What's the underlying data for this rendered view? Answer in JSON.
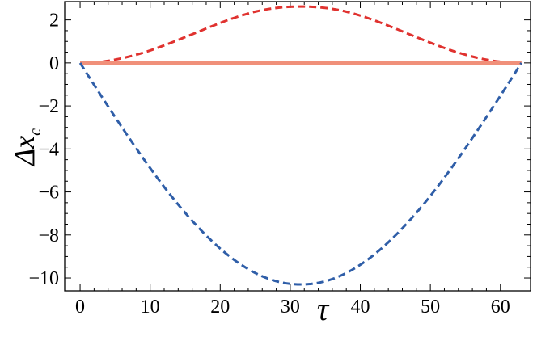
{
  "chart_data": {
    "type": "line",
    "title": "",
    "xlabel": "τ",
    "ylabel_main": "Δx",
    "ylabel_sub": "c",
    "xlim": [
      -2.2,
      64.3
    ],
    "ylim": [
      -10.6,
      2.85
    ],
    "xticks": [
      0,
      10,
      20,
      30,
      40,
      50,
      60
    ],
    "xtick_labels": [
      "0",
      "10",
      "20",
      "30",
      "40",
      "50",
      "60"
    ],
    "yticks": [
      2,
      0,
      -2,
      -4,
      -6,
      -8,
      -10
    ],
    "ytick_labels": [
      "2",
      "0",
      "−2",
      "−4",
      "−6",
      "−8",
      "−10"
    ],
    "grid": false,
    "legend": "none",
    "series": [
      {
        "color": "#e0322f",
        "style": "dashed",
        "x": [
          0,
          3.15,
          6.3,
          9.45,
          12.6,
          15.75,
          18.9,
          22.05,
          25.2,
          28.35,
          31.5,
          34.65,
          37.8,
          40.95,
          44.1,
          47.25,
          50.4,
          53.55,
          56.7,
          59.85,
          63
        ],
        "y": [
          0,
          0.06,
          0.24,
          0.52,
          0.89,
          1.3,
          1.72,
          2.1,
          2.4,
          2.57,
          2.62,
          2.57,
          2.4,
          2.1,
          1.72,
          1.3,
          0.89,
          0.52,
          0.24,
          0.06,
          0
        ]
      },
      {
        "color": "#f0907a",
        "style": "solid",
        "x": [
          0,
          63
        ],
        "y": [
          0,
          0
        ]
      },
      {
        "color": "#2f5ea8",
        "style": "dashed",
        "x": [
          0,
          3.15,
          6.3,
          9.45,
          12.6,
          15.75,
          18.9,
          22.05,
          25.2,
          28.35,
          31.5,
          34.65,
          37.8,
          40.95,
          44.1,
          47.25,
          50.4,
          53.55,
          56.7,
          59.85,
          63
        ],
        "y": [
          0,
          -1.6,
          -3.15,
          -4.64,
          -6.02,
          -7.25,
          -8.31,
          -9.17,
          -9.8,
          -10.18,
          -10.3,
          -10.18,
          -9.8,
          -9.17,
          -8.31,
          -7.25,
          -6.02,
          -4.64,
          -3.15,
          -1.6,
          0
        ]
      }
    ]
  }
}
